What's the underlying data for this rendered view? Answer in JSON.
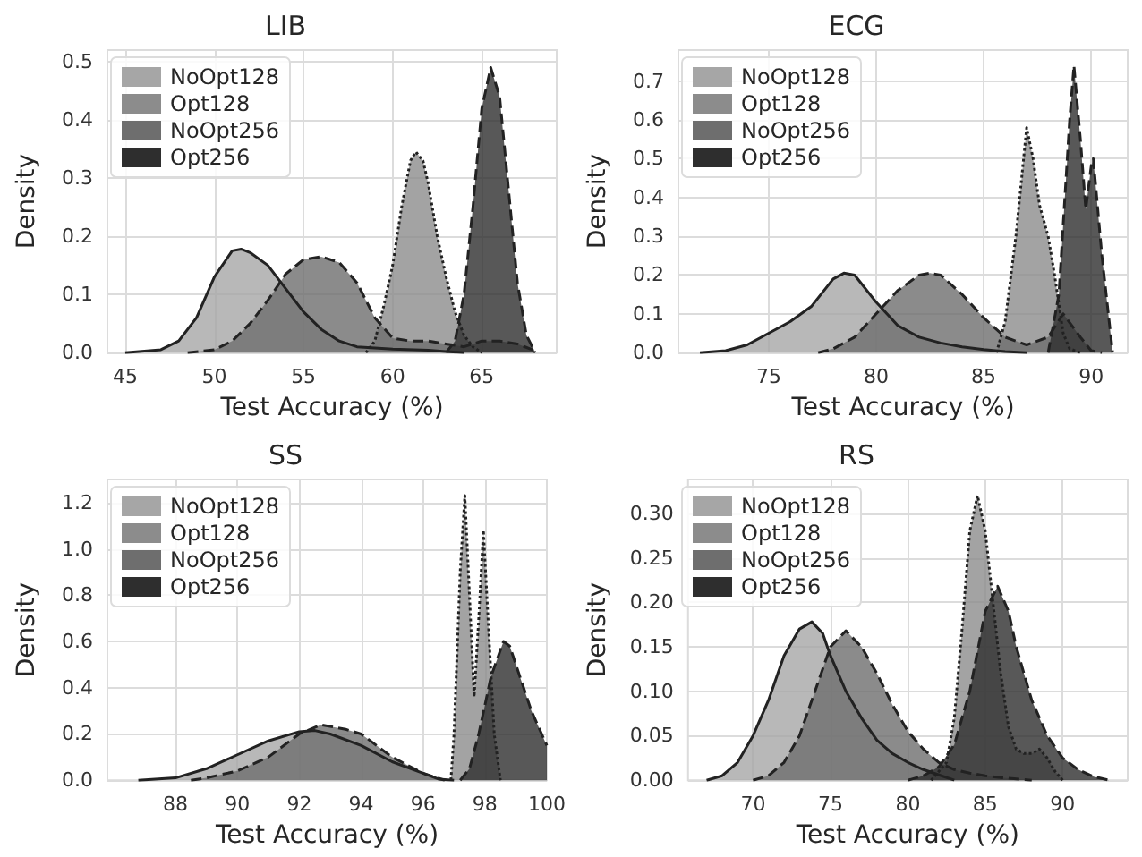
{
  "chart_data": [
    {
      "type": "area",
      "title": "LIB",
      "xlabel": "Test Accuracy (%)",
      "ylabel": "Density",
      "grid": true,
      "legend": "top left",
      "marker": "none",
      "xlim": [
        44.0,
        69.2
      ],
      "xticks": [
        45,
        50,
        55,
        60,
        65
      ],
      "ylim": [
        0,
        0.52
      ],
      "yticks": [
        {
          "value": 0,
          "label": "0.0"
        },
        0.1,
        0.2,
        0.3,
        0.4,
        0.5
      ],
      "series": [
        {
          "name": "NoOpt128",
          "color": "#a6a6a6",
          "line_style": "solid",
          "x": [
            45,
            47,
            48,
            49,
            50,
            51,
            51.5,
            52,
            53,
            54,
            55,
            56,
            57,
            58,
            60,
            62,
            63,
            64
          ],
          "values": [
            0,
            0.005,
            0.02,
            0.06,
            0.13,
            0.175,
            0.178,
            0.172,
            0.15,
            0.11,
            0.07,
            0.04,
            0.02,
            0.01,
            0.006,
            0.004,
            0.002,
            0
          ]
        },
        {
          "name": "Opt128",
          "color": "#8c8c8c",
          "line_style": "dotted",
          "x": [
            58.5,
            59,
            59.5,
            60,
            60.5,
            61,
            61.3,
            61.7,
            62,
            62.5,
            63,
            63.5,
            64,
            64.5,
            65
          ],
          "values": [
            0,
            0.02,
            0.08,
            0.15,
            0.25,
            0.33,
            0.345,
            0.33,
            0.29,
            0.2,
            0.13,
            0.07,
            0.03,
            0.01,
            0
          ]
        },
        {
          "name": "NoOpt256",
          "color": "#6e6e6e",
          "line_style": "dashed",
          "x": [
            48.5,
            50,
            51,
            52,
            53,
            54,
            55,
            56,
            57,
            58,
            59,
            60,
            61,
            62,
            63,
            64,
            65,
            66,
            67,
            68
          ],
          "values": [
            0,
            0.005,
            0.02,
            0.05,
            0.09,
            0.135,
            0.16,
            0.165,
            0.155,
            0.12,
            0.06,
            0.025,
            0.02,
            0.02,
            0.015,
            0.01,
            0.02,
            0.02,
            0.015,
            0.003
          ]
        },
        {
          "name": "Opt256",
          "color": "#2e2e2e",
          "line_style": "dashed",
          "x": [
            63,
            63.5,
            64,
            64.5,
            65,
            65.5,
            66,
            66.5,
            67,
            67.5,
            68
          ],
          "values": [
            0,
            0.02,
            0.1,
            0.25,
            0.42,
            0.49,
            0.44,
            0.28,
            0.12,
            0.03,
            0
          ]
        }
      ]
    },
    {
      "type": "area",
      "title": "ECG",
      "xlabel": "Test Accuracy (%)",
      "ylabel": "Density",
      "grid": true,
      "legend": "top left",
      "marker": "none",
      "xlim": [
        70.8,
        91.7
      ],
      "xticks": [
        75,
        80,
        85,
        90
      ],
      "ylim": [
        0,
        0.78
      ],
      "yticks": [
        {
          "value": 0,
          "label": "0.0"
        },
        0.1,
        0.2,
        0.3,
        0.4,
        0.5,
        0.6,
        0.7
      ],
      "series": [
        {
          "name": "NoOpt128",
          "color": "#a6a6a6",
          "line_style": "solid",
          "x": [
            71.8,
            73,
            74,
            75,
            76,
            77,
            78,
            78.5,
            79,
            80,
            81,
            82,
            83,
            84,
            85,
            86,
            87
          ],
          "values": [
            0,
            0.005,
            0.02,
            0.05,
            0.08,
            0.12,
            0.19,
            0.205,
            0.2,
            0.13,
            0.07,
            0.04,
            0.025,
            0.015,
            0.008,
            0.003,
            0
          ]
        },
        {
          "name": "Opt128",
          "color": "#8c8c8c",
          "line_style": "dotted",
          "x": [
            85.6,
            86,
            86.5,
            87,
            87.3,
            87.6,
            88,
            88.3,
            88.7,
            89,
            89.5
          ],
          "values": [
            0,
            0.08,
            0.3,
            0.58,
            0.5,
            0.38,
            0.3,
            0.2,
            0.05,
            0.01,
            0
          ]
        },
        {
          "name": "NoOpt256",
          "color": "#6e6e6e",
          "line_style": "dashed",
          "x": [
            77.3,
            78,
            79,
            80,
            81,
            82,
            82.5,
            83,
            84,
            85,
            86,
            87,
            88,
            88.7,
            89.5,
            90,
            90.5
          ],
          "values": [
            0,
            0.01,
            0.04,
            0.1,
            0.16,
            0.2,
            0.205,
            0.2,
            0.15,
            0.09,
            0.04,
            0.02,
            0.04,
            0.1,
            0.04,
            0.005,
            0
          ]
        },
        {
          "name": "Opt256",
          "color": "#2e2e2e",
          "line_style": "dashed",
          "x": [
            88,
            88.5,
            89,
            89.2,
            89.5,
            89.75,
            90,
            90.1,
            90.5,
            91
          ],
          "values": [
            0,
            0.15,
            0.6,
            0.74,
            0.55,
            0.37,
            0.48,
            0.5,
            0.25,
            0
          ]
        }
      ]
    },
    {
      "type": "area",
      "title": "SS",
      "xlabel": "Test Accuracy (%)",
      "ylabel": "Density",
      "grid": true,
      "legend": "top left",
      "marker": "none",
      "xlim": [
        85.8,
        100
      ],
      "xticks": [
        88,
        90,
        92,
        94,
        96,
        98,
        100
      ],
      "ylim": [
        0,
        1.3
      ],
      "yticks": [
        {
          "value": 0,
          "label": "0.0"
        },
        0.2,
        0.4,
        0.6,
        0.8,
        {
          "value": 1,
          "label": "1.0"
        },
        1.2
      ],
      "series": [
        {
          "name": "NoOpt128",
          "color": "#a6a6a6",
          "line_style": "solid",
          "x": [
            86.8,
            88,
            89,
            90,
            91,
            92,
            92.5,
            93,
            94,
            95,
            96,
            96.5,
            97
          ],
          "values": [
            0,
            0.01,
            0.05,
            0.11,
            0.17,
            0.21,
            0.215,
            0.2,
            0.15,
            0.08,
            0.03,
            0.005,
            0
          ]
        },
        {
          "name": "Opt128",
          "color": "#8c8c8c",
          "line_style": "dotted",
          "x": [
            96.9,
            97,
            97.2,
            97.35,
            97.5,
            97.65,
            97.8,
            97.95,
            98.1,
            98.3,
            98.5
          ],
          "values": [
            0,
            0.2,
            0.9,
            1.23,
            0.8,
            0.36,
            0.7,
            1.08,
            0.7,
            0.2,
            0
          ]
        },
        {
          "name": "NoOpt256",
          "color": "#6e6e6e",
          "line_style": "dashed",
          "x": [
            88.5,
            89,
            90,
            91,
            92,
            92.7,
            93.5,
            94,
            95,
            96,
            96.7
          ],
          "values": [
            0,
            0.01,
            0.04,
            0.1,
            0.2,
            0.24,
            0.22,
            0.2,
            0.1,
            0.03,
            0
          ]
        },
        {
          "name": "Opt256",
          "color": "#2e2e2e",
          "line_style": "dashed",
          "x": [
            97.2,
            97.5,
            97.8,
            98.2,
            98.6,
            98.8,
            99,
            99.5,
            100
          ],
          "values": [
            0,
            0.05,
            0.2,
            0.45,
            0.6,
            0.58,
            0.5,
            0.3,
            0.15
          ]
        }
      ]
    },
    {
      "type": "area",
      "title": "RS",
      "xlabel": "Test Accuracy (%)",
      "ylabel": "Density",
      "grid": true,
      "legend": "top left",
      "marker": "none",
      "xlim": [
        65.8,
        94.2
      ],
      "xticks": [
        70,
        75,
        80,
        85,
        90
      ],
      "ylim": [
        0,
        0.338
      ],
      "yticks": [
        {
          "value": 0,
          "label": "0.00"
        },
        {
          "value": 0.05,
          "label": "0.05"
        },
        {
          "value": 0.1,
          "label": "0.10"
        },
        {
          "value": 0.15,
          "label": "0.15"
        },
        {
          "value": 0.2,
          "label": "0.20"
        },
        {
          "value": 0.25,
          "label": "0.25"
        },
        {
          "value": 0.3,
          "label": "0.30"
        }
      ],
      "series": [
        {
          "name": "NoOpt128",
          "color": "#a6a6a6",
          "line_style": "solid",
          "x": [
            67,
            68,
            69,
            70,
            71,
            72,
            73,
            73.8,
            74.5,
            75,
            76,
            77,
            78,
            79,
            80,
            81,
            82,
            83
          ],
          "values": [
            0,
            0.005,
            0.02,
            0.05,
            0.09,
            0.14,
            0.17,
            0.178,
            0.165,
            0.14,
            0.1,
            0.07,
            0.045,
            0.03,
            0.02,
            0.012,
            0.006,
            0
          ]
        },
        {
          "name": "Opt128",
          "color": "#8c8c8c",
          "line_style": "dotted",
          "x": [
            81.5,
            82.5,
            83,
            83.5,
            84,
            84.5,
            85,
            85.5,
            86,
            86.5,
            87,
            87.5,
            88,
            88.5,
            89,
            89.5,
            90
          ],
          "values": [
            0,
            0.02,
            0.07,
            0.17,
            0.28,
            0.32,
            0.28,
            0.2,
            0.12,
            0.06,
            0.035,
            0.03,
            0.03,
            0.035,
            0.025,
            0.01,
            0
          ]
        },
        {
          "name": "NoOpt256",
          "color": "#6e6e6e",
          "line_style": "dashed",
          "x": [
            70,
            71,
            72,
            73,
            74,
            75,
            76,
            77,
            78,
            79,
            80,
            81,
            82,
            83,
            84,
            85,
            86,
            88
          ],
          "values": [
            0,
            0.005,
            0.02,
            0.05,
            0.1,
            0.15,
            0.168,
            0.15,
            0.12,
            0.085,
            0.055,
            0.035,
            0.02,
            0.012,
            0.008,
            0.005,
            0.003,
            0
          ]
        },
        {
          "name": "Opt256",
          "color": "#2e2e2e",
          "line_style": "dashed",
          "x": [
            80,
            81,
            82,
            83,
            84,
            85,
            85.8,
            86.5,
            87,
            88,
            89,
            90,
            91,
            92,
            93
          ],
          "values": [
            0,
            0.005,
            0.015,
            0.04,
            0.1,
            0.19,
            0.218,
            0.19,
            0.15,
            0.09,
            0.05,
            0.025,
            0.012,
            0.004,
            0
          ]
        }
      ]
    }
  ]
}
